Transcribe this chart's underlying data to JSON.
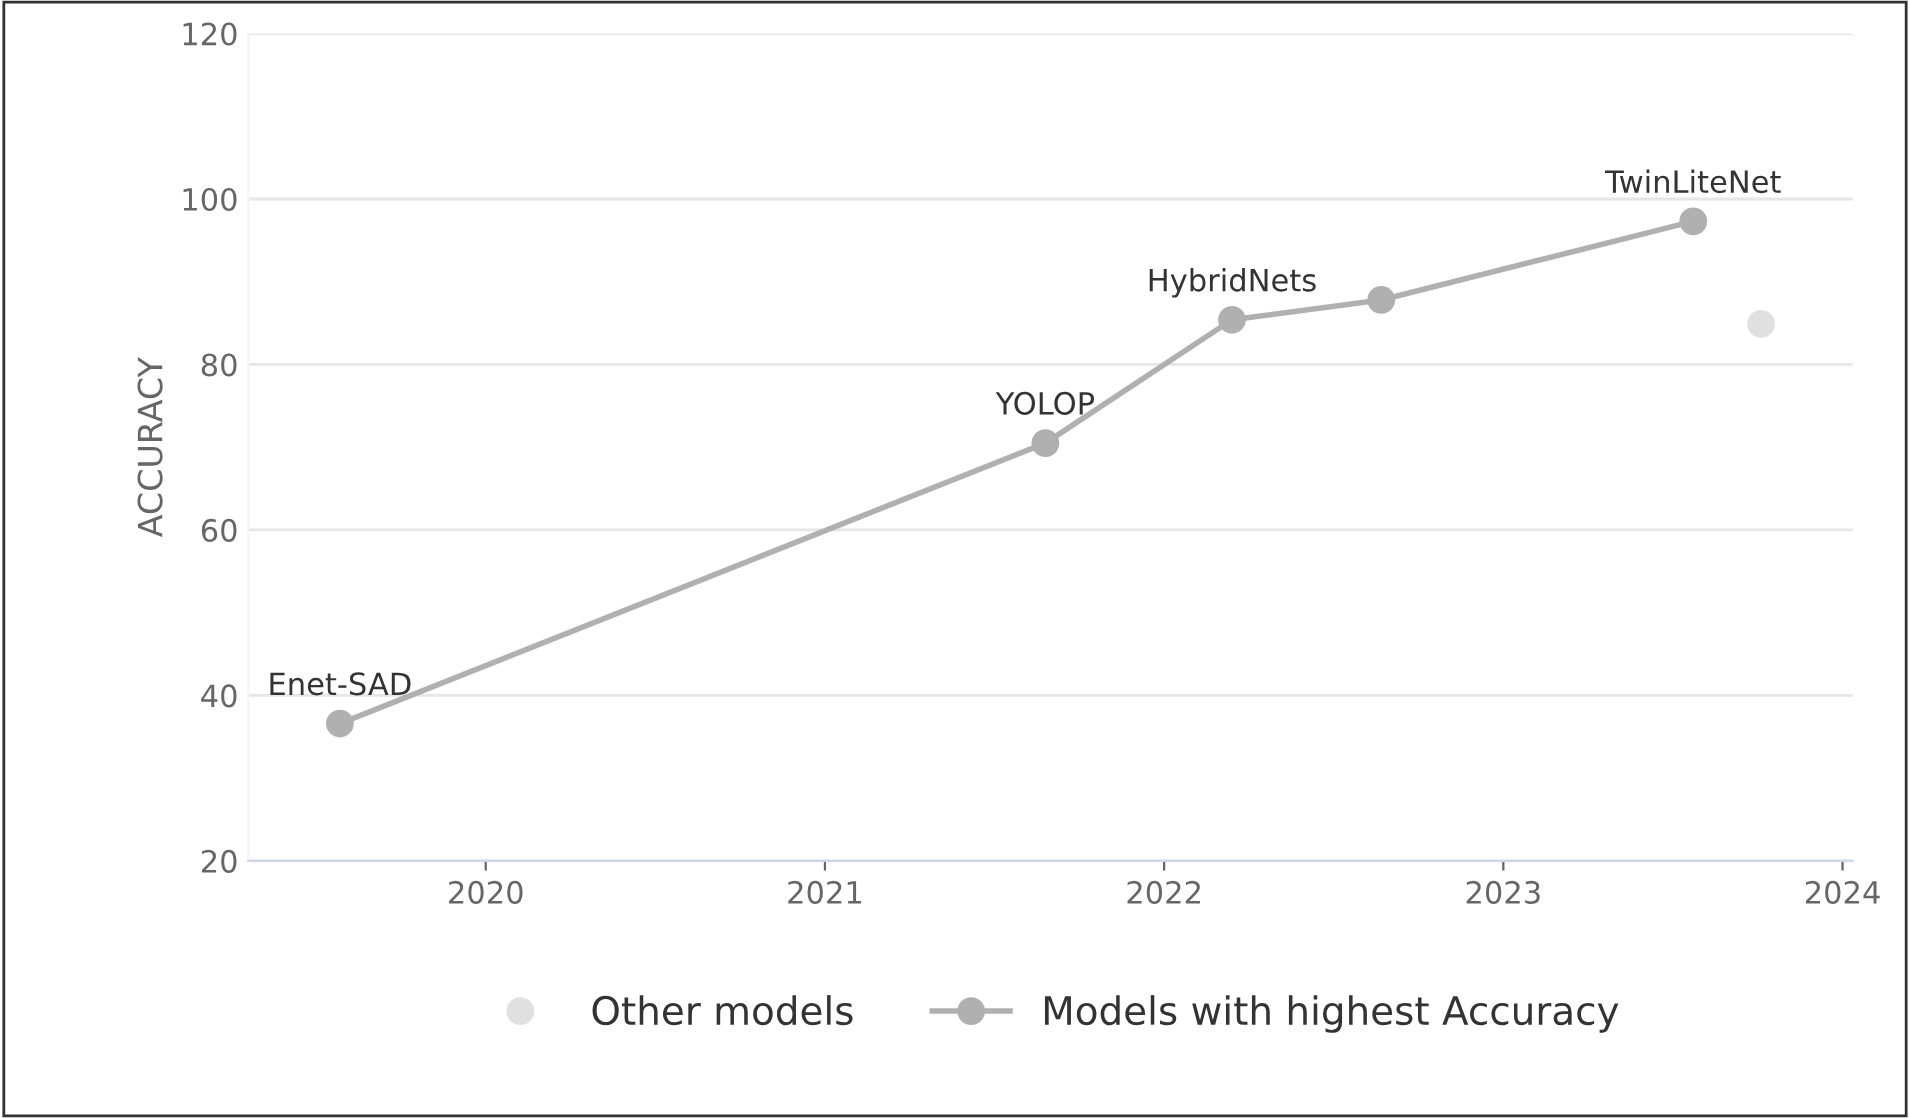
{
  "chart_data": {
    "type": "line",
    "ylabel": "ACCURACY",
    "xlim": [
      2019.3,
      2024.03
    ],
    "ylim": [
      20,
      120
    ],
    "xticks": [
      2020,
      2021,
      2022,
      2023,
      2024
    ],
    "yticks": [
      20,
      40,
      60,
      80,
      100,
      120
    ],
    "grid": "y",
    "legend": "bottom",
    "marker": "circle",
    "line_style": "solid",
    "series": [
      {
        "name": "Other models",
        "type": "scatter",
        "color": "#e0e0e0",
        "x": [
          2023.76
        ],
        "values": [
          84.9
        ]
      },
      {
        "name": "Models with highest Accuracy",
        "type": "line",
        "color": "#b0b0b0",
        "x": [
          2019.57,
          2021.65,
          2022.2,
          2022.64,
          2023.56
        ],
        "values": [
          36.6,
          70.5,
          85.4,
          87.8,
          97.3
        ]
      }
    ],
    "annotations": [
      {
        "text": "Enet-SAD",
        "x": 2019.57,
        "y": 36.6
      },
      {
        "text": "YOLOP",
        "x": 2021.65,
        "y": 70.5
      },
      {
        "text": "HybridNets",
        "x": 2022.2,
        "y": 85.4
      },
      {
        "text": "TwinLiteNet",
        "x": 2023.56,
        "y": 97.3
      }
    ]
  }
}
